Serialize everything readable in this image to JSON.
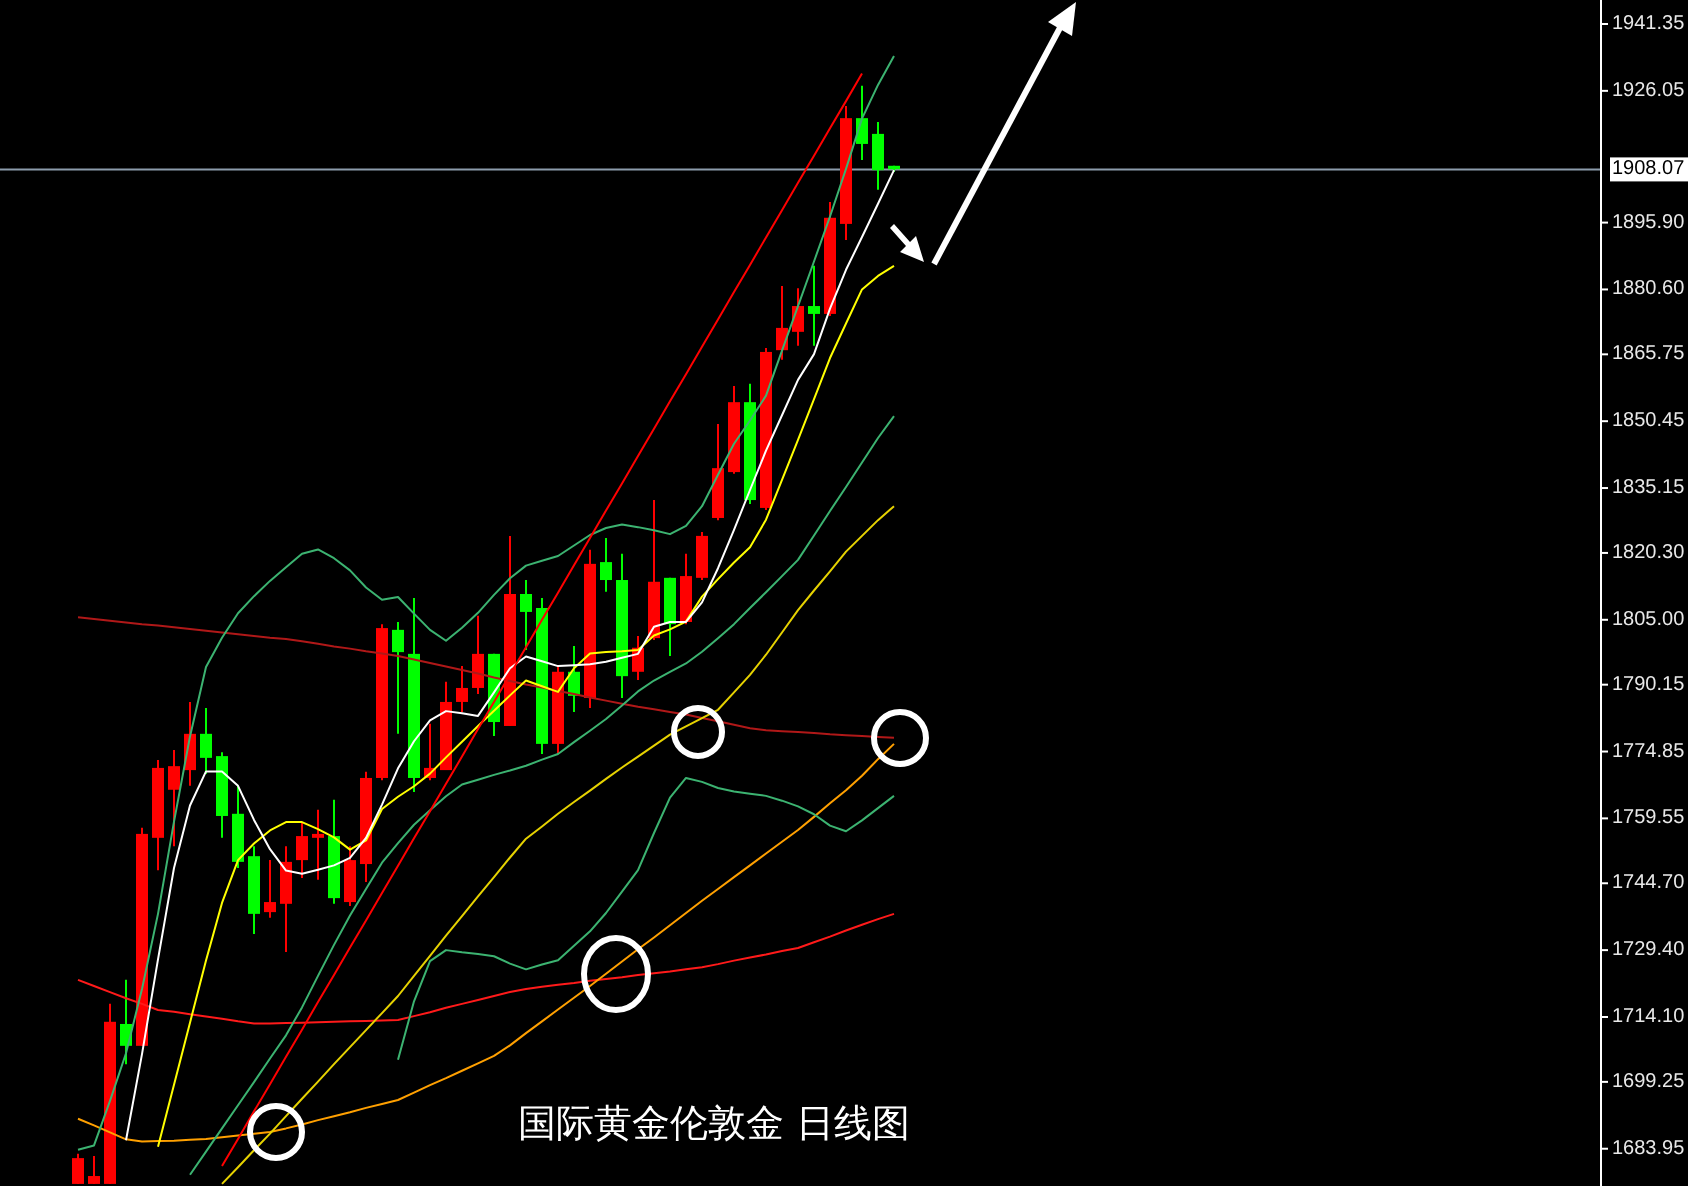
{
  "chart_data": {
    "type": "candlestick",
    "title": "国际黄金伦敦金 日线图",
    "categories": [
      null,
      null,
      null,
      null,
      null,
      null,
      null,
      null,
      null,
      null,
      null,
      null,
      null,
      null,
      null,
      null,
      null,
      null,
      null,
      null,
      null,
      null,
      null,
      null,
      null,
      null,
      null,
      null,
      null,
      null,
      null,
      null,
      null,
      null,
      null,
      null,
      null,
      null,
      null,
      null,
      null,
      null,
      null,
      null,
      null,
      null,
      null,
      null,
      null,
      null,
      null,
      null
    ],
    "ylim": [
      1675.42,
      1946.84
    ],
    "yticks": [
      1941.35,
      1926.05,
      {
        "value": 1895.9,
        "label": "1895.90"
      },
      {
        "value": 1880.6,
        "label": "1880.60"
      },
      1865.75,
      1850.45,
      1835.15,
      {
        "value": 1820.3,
        "label": "1820.30"
      },
      {
        "value": 1805,
        "label": "1805.00"
      },
      1790.15,
      1774.85,
      1759.55,
      {
        "value": 1744.7,
        "label": "1744.70"
      },
      {
        "value": 1729.4,
        "label": "1729.40"
      },
      {
        "value": 1714.1,
        "label": "1714.10"
      },
      1699.25,
      1683.95
    ],
    "tick_labels": "y",
    "ohlc": [
      [
        1675.9,
        1682.8,
        1675.9,
        1681.8
      ],
      [
        1675.9,
        1682.3,
        1675.9,
        1677.7
      ],
      [
        1675.9,
        1717.1,
        1675.9,
        1713.0
      ],
      [
        1712.5,
        1722.6,
        1703.3,
        1707.5
      ],
      [
        1707.5,
        1757.4,
        1707.5,
        1756.0
      ],
      [
        1755.1,
        1772.9,
        1747.7,
        1771.1
      ],
      [
        1766.1,
        1775.2,
        1753.2,
        1771.5
      ],
      [
        1770.6,
        1786.2,
        1767.0,
        1778.9
      ],
      [
        1778.9,
        1784.8,
        1769.7,
        1773.4
      ],
      [
        1773.8,
        1774.7,
        1755.1,
        1760.1
      ],
      [
        1760.6,
        1767.0,
        1748.2,
        1749.6
      ],
      [
        1750.9,
        1753.2,
        1733.1,
        1737.7
      ],
      [
        1738.1,
        1750.0,
        1736.8,
        1740.4
      ],
      [
        1740.0,
        1753.2,
        1729.0,
        1749.6
      ],
      [
        1750.0,
        1758.7,
        1745.9,
        1755.5
      ],
      [
        1755.1,
        1761.5,
        1745.5,
        1756.0
      ],
      [
        1755.5,
        1763.8,
        1740.0,
        1741.3
      ],
      [
        1740.4,
        1753.2,
        1739.5,
        1750.0
      ],
      [
        1749.1,
        1770.2,
        1745.0,
        1768.8
      ],
      [
        1768.8,
        1804.0,
        1768.3,
        1803.1
      ],
      [
        1802.7,
        1804.5,
        1778.9,
        1797.6
      ],
      [
        1797.2,
        1810.0,
        1765.6,
        1768.8
      ],
      [
        1768.8,
        1781.2,
        1768.3,
        1771.1
      ],
      [
        1770.6,
        1790.8,
        1770.6,
        1786.2
      ],
      [
        1786.2,
        1794.4,
        1783.9,
        1789.4
      ],
      [
        1789.4,
        1805.9,
        1788.0,
        1797.2
      ],
      [
        1797.2,
        1797.2,
        1778.4,
        1781.6
      ],
      [
        1780.7,
        1824.2,
        1780.7,
        1810.9
      ],
      [
        1810.9,
        1814.1,
        1798.1,
        1806.8
      ],
      [
        1807.7,
        1810.0,
        1774.3,
        1776.6
      ],
      [
        1776.6,
        1794.4,
        1774.3,
        1793.1
      ],
      [
        1793.1,
        1799.0,
        1783.9,
        1787.6
      ],
      [
        1787.1,
        1821.0,
        1784.8,
        1817.8
      ],
      [
        1818.2,
        1823.7,
        1811.4,
        1814.1
      ],
      [
        1814.1,
        1820.1,
        1787.1,
        1792.1
      ],
      [
        1793.1,
        1801.3,
        1791.2,
        1798.6
      ],
      [
        1800.8,
        1832.4,
        1800.4,
        1813.7
      ],
      [
        1814.6,
        1814.6,
        1796.7,
        1804.0
      ],
      [
        1804.5,
        1820.1,
        1804.0,
        1815.0
      ],
      [
        1814.6,
        1825.1,
        1814.1,
        1824.2
      ],
      [
        1828.3,
        1849.8,
        1827.8,
        1839.7
      ],
      [
        1838.8,
        1858.5,
        1838.4,
        1854.8
      ],
      [
        1854.8,
        1859.0,
        1831.5,
        1832.4
      ],
      [
        1830.6,
        1867.2,
        1830.1,
        1866.3
      ],
      [
        1866.7,
        1881.4,
        1864.5,
        1871.8
      ],
      [
        1870.9,
        1880.9,
        1867.7,
        1876.8
      ],
      [
        1876.8,
        1886.0,
        1867.7,
        1875.0
      ],
      [
        1875.0,
        1900.6,
        1874.5,
        1897.0
      ],
      [
        1895.6,
        1922.6,
        1891.9,
        1919.8
      ],
      [
        1919.8,
        1927.2,
        1910.2,
        1913.9
      ],
      [
        1916.2,
        1918.9,
        1903.4,
        1907.9
      ],
      [
        1908.9,
        1908.9,
        1907.5,
        1908.1
      ]
    ],
    "colors": [
      "#ff0000",
      "#ff0000",
      "#ff0000",
      "#00ff00",
      "#ff0000",
      "#ff0000",
      "#ff0000",
      "#ff0000",
      "#00ff00",
      "#00ff00",
      "#00ff00",
      "#00ff00",
      "#ff0000",
      "#ff0000",
      "#ff0000",
      "#ff0000",
      "#00ff00",
      "#ff0000",
      "#ff0000",
      "#ff0000",
      "#00ff00",
      "#00ff00",
      "#ff0000",
      "#ff0000",
      "#ff0000",
      "#ff0000",
      "#00ff00",
      "#ff0000",
      "#00ff00",
      "#00ff00",
      "#ff0000",
      "#00ff00",
      "#ff0000",
      "#00ff00",
      "#00ff00",
      "#ff0000",
      "#ff0000",
      "#00ff00",
      "#ff0000",
      "#ff0000",
      "#ff0000",
      "#ff0000",
      "#00ff00",
      "#ff0000",
      "#ff0000",
      "#ff0000",
      "#00ff00",
      "#ff0000",
      "#ff0000",
      "#00ff00",
      "#00ff00",
      "#00ff00"
    ],
    "series": [
      {
        "type": "line",
        "color": "#b01818",
        "values": [
          1805.6,
          1805.2,
          1804.8,
          1804.4,
          1804.0,
          1803.7,
          1803.3,
          1802.9,
          1802.5,
          1802.1,
          1801.7,
          1801.3,
          1800.9,
          1800.6,
          1800.1,
          1799.5,
          1798.9,
          1798.4,
          1797.8,
          1797.3,
          1796.7,
          1795.9,
          1795.1,
          1794.3,
          1793.5,
          1792.7,
          1791.8,
          1791.0,
          1790.2,
          1789.5,
          1788.7,
          1788.0,
          1787.2,
          1786.5,
          1785.8,
          1785.1,
          1784.5,
          1783.9,
          1783.3,
          1782.5,
          1781.8,
          1781.0,
          1780.2,
          1779.7,
          1779.5,
          1779.3,
          1779.1,
          1778.8,
          1778.6,
          1778.4,
          1778.2,
          1778.0
        ]
      },
      {
        "type": "line",
        "color": "#ff1a1a",
        "values": [
          1722.6,
          1721.2,
          1719.8,
          1718.4,
          1717.1,
          1715.7,
          1715.3,
          1714.7,
          1714.2,
          1713.7,
          1713.1,
          1712.6,
          1712.6,
          1712.7,
          1712.8,
          1712.9,
          1713.0,
          1713.1,
          1713.2,
          1713.3,
          1713.4,
          1714.3,
          1715.2,
          1716.2,
          1717.1,
          1718.0,
          1718.9,
          1719.8,
          1720.5,
          1721.0,
          1721.5,
          1721.9,
          1722.4,
          1722.8,
          1723.2,
          1723.7,
          1724.1,
          1724.5,
          1725.0,
          1725.5,
          1726.2,
          1727.0,
          1727.7,
          1728.4,
          1729.2,
          1729.9,
          1731.2,
          1732.5,
          1733.9,
          1735.2,
          1736.5,
          1737.7
        ]
      },
      {
        "type": "line",
        "color": "#ffa000",
        "values": [
          1690.8,
          1689.3,
          1687.7,
          1686.1,
          1685.6,
          1685.7,
          1685.8,
          1686.0,
          1686.2,
          1686.6,
          1687.0,
          1687.4,
          1687.8,
          1688.6,
          1689.5,
          1690.5,
          1691.4,
          1692.3,
          1693.3,
          1694.2,
          1695.1,
          1696.8,
          1698.5,
          1700.1,
          1701.8,
          1703.5,
          1705.2,
          1707.6,
          1710.4,
          1713.1,
          1715.8,
          1718.5,
          1721.2,
          1724.0,
          1726.8,
          1729.6,
          1732.3,
          1735.1,
          1737.9,
          1740.7,
          1743.4,
          1746.1,
          1748.8,
          1751.5,
          1754.2,
          1756.9,
          1759.9,
          1763.0,
          1766.0,
          1769.3,
          1773.1,
          1776.6
        ]
      },
      {
        "type": "line",
        "color": "#3cb371",
        "values": [
          1683.7,
          1684.7,
          1694.9,
          1705.8,
          1720.5,
          1737.7,
          1758.8,
          1778.3,
          1794.2,
          1800.9,
          1806.5,
          1810.4,
          1813.9,
          1817.0,
          1820.1,
          1821.1,
          1819.1,
          1816.3,
          1812.4,
          1809.6,
          1810.2,
          1806.4,
          1802.7,
          1800.2,
          1803.2,
          1806.6,
          1810.7,
          1814.5,
          1817.4,
          1818.5,
          1819.6,
          1822.0,
          1824.4,
          1826.0,
          1826.8,
          1826.2,
          1825.5,
          1824.6,
          1826.5,
          1831.0,
          1838.2,
          1845.3,
          1850.6,
          1856.3,
          1866.6,
          1876.8,
          1887.0,
          1897.3,
          1908.2,
          1919.7,
          1927.4,
          1934.0
        ]
      },
      {
        "type": "line",
        "color": "#3cb371",
        "values": [
          null,
          null,
          null,
          null,
          null,
          null,
          null,
          1678.0,
          1683.3,
          1688.6,
          1693.9,
          1699.2,
          1704.6,
          1709.9,
          1716.3,
          1723.5,
          1730.6,
          1737.3,
          1743.4,
          1749.4,
          1753.9,
          1758.1,
          1761.4,
          1764.6,
          1767.3,
          1768.4,
          1769.5,
          1770.5,
          1771.6,
          1773.0,
          1774.3,
          1777.0,
          1779.6,
          1782.3,
          1785.4,
          1788.6,
          1791.1,
          1793.1,
          1795.0,
          1797.7,
          1800.8,
          1804.0,
          1807.7,
          1811.3,
          1815.0,
          1818.7,
          1824.3,
          1829.9,
          1835.4,
          1841.0,
          1846.6,
          1851.6
        ]
      },
      {
        "type": "line",
        "color": "#3cb371",
        "values": [
          null,
          null,
          null,
          null,
          null,
          null,
          null,
          null,
          null,
          null,
          null,
          null,
          null,
          null,
          null,
          null,
          null,
          null,
          null,
          null,
          1704.3,
          1717.7,
          1726.9,
          1729.4,
          1728.9,
          1728.5,
          1728.0,
          1726.3,
          1725.0,
          1726.1,
          1727.1,
          1730.4,
          1733.7,
          1737.9,
          1742.8,
          1747.7,
          1756.2,
          1764.3,
          1768.8,
          1767.9,
          1766.5,
          1765.7,
          1765.2,
          1764.7,
          1763.6,
          1762.3,
          1760.5,
          1757.9,
          1756.6,
          1759.1,
          1761.9,
          1764.7
        ]
      },
      {
        "type": "line",
        "color": "#e6d200",
        "values": [
          null,
          null,
          null,
          null,
          null,
          null,
          null,
          null,
          null,
          1675.9,
          1679.7,
          1683.6,
          1687.4,
          1691.4,
          1695.4,
          1699.3,
          1703.3,
          1707.2,
          1711.1,
          1715.0,
          1718.9,
          1723.5,
          1728.1,
          1732.7,
          1737.2,
          1741.7,
          1746.1,
          1750.6,
          1754.9,
          1757.7,
          1760.6,
          1763.3,
          1765.9,
          1768.6,
          1771.2,
          1773.7,
          1776.2,
          1778.7,
          1780.6,
          1782.5,
          1784.4,
          1788.4,
          1792.4,
          1797.0,
          1802.1,
          1807.2,
          1811.7,
          1816.1,
          1820.6,
          1824.2,
          1827.8,
          1831.0
        ]
      },
      {
        "type": "line",
        "color": "#ffff00",
        "values": [
          null,
          null,
          null,
          null,
          null,
          1684.4,
          1698.6,
          1712.8,
          1727.0,
          1740.2,
          1750.0,
          1753.8,
          1756.8,
          1758.7,
          1758.7,
          1757.1,
          1755.2,
          1752.4,
          1754.5,
          1761.7,
          1764.5,
          1766.9,
          1769.8,
          1773.5,
          1777.1,
          1780.7,
          1784.2,
          1787.7,
          1791.1,
          1789.8,
          1788.5,
          1793.9,
          1797.3,
          1797.6,
          1797.8,
          1798.1,
          1801.4,
          1802.8,
          1804.6,
          1810.3,
          1814.3,
          1818.1,
          1821.6,
          1827.9,
          1837.0,
          1846.2,
          1855.5,
          1864.9,
          1872.8,
          1880.6,
          1883.7,
          1886.0
        ]
      },
      {
        "type": "line",
        "color": "#ffffff",
        "values": [
          null,
          null,
          null,
          1685.9,
          1705.6,
          1727.3,
          1748.2,
          1762.5,
          1770.3,
          1770.3,
          1767.0,
          1759.2,
          1752.5,
          1747.6,
          1746.9,
          1747.8,
          1748.8,
          1750.5,
          1755.1,
          1762.7,
          1771.0,
          1777.2,
          1782.0,
          1784.1,
          1783.6,
          1783.0,
          1788.4,
          1793.9,
          1796.6,
          1795.5,
          1794.4,
          1794.6,
          1794.8,
          1795.4,
          1796.3,
          1797.2,
          1803.4,
          1804.5,
          1804.5,
          1809.0,
          1816.8,
          1825.6,
          1834.7,
          1843.7,
          1851.8,
          1859.9,
          1865.8,
          1876.2,
          1885.1,
          1892.6,
          1900.2,
          1907.9
        ]
      },
      {
        "type": "line",
        "color": "#ff0000",
        "values": [
          null,
          null,
          null,
          null,
          null,
          null,
          null,
          null,
          null,
          1680.0,
          1686.2,
          1692.5,
          1698.7,
          1705.0,
          1711.2,
          1717.5,
          1723.7,
          1730.0,
          1736.2,
          1742.5,
          1748.7,
          1755.0,
          1761.2,
          1767.5,
          1773.7,
          1780.0,
          1786.2,
          1792.5,
          1798.7,
          1805.0,
          1811.2,
          1817.5,
          1823.7,
          1830.0,
          1836.2,
          1842.5,
          1848.7,
          1855.0,
          1861.2,
          1867.5,
          1873.7,
          1880.0,
          1886.2,
          1892.5,
          1898.7,
          1905.0,
          1911.2,
          1917.5,
          1923.7,
          1930.0,
          null,
          null
        ]
      }
    ],
    "ref_lines": [
      {
        "axis": "y",
        "value": 1908.07,
        "label": "1908.07",
        "color": "#8c9cac"
      }
    ]
  }
}
